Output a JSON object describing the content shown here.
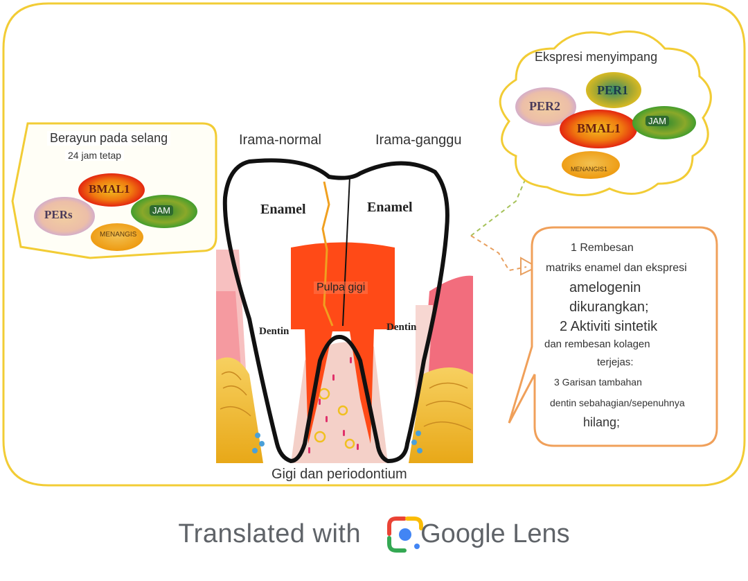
{
  "left_bubble": {
    "title": "Berayun pada selang",
    "subtitle": "24 jam tetap",
    "genes": [
      "BMAL1",
      "PERs",
      "JAM",
      "MENANGIS"
    ]
  },
  "top_labels": {
    "normal": "Irama-normal",
    "disturbed": "Irama-ganggu"
  },
  "tooth": {
    "enamel_left": "Enamel",
    "enamel_right": "Enamel",
    "pulp": "Pulpa gigi",
    "dentin_left": "Dentin",
    "dentin_right": "Dentin",
    "caption": "Gigi dan periodontium"
  },
  "cloud": {
    "title": "Ekspresi menyimpang",
    "genes": [
      "PER1",
      "PER2",
      "BMAL1",
      "JAM",
      "MENANGIS1"
    ]
  },
  "effects": {
    "lines": [
      "1 Rembesan",
      "matriks enamel dan ekspresi",
      "amelogenin",
      "dikurangkan;",
      "2 Aktiviti sintetik",
      "dan rembesan kolagen",
      "terjejas:",
      "3 Garisan tambahan",
      "dentin sebahagian/sepenuhnya",
      "hilang;"
    ]
  },
  "footer": {
    "prefix": "Translated with",
    "brand": "Google Lens"
  },
  "colors": {
    "frame": "#f2cc35",
    "effects_border": "#f0a05a",
    "pulp": "#ff4a17",
    "gum": "#f26d7d"
  }
}
